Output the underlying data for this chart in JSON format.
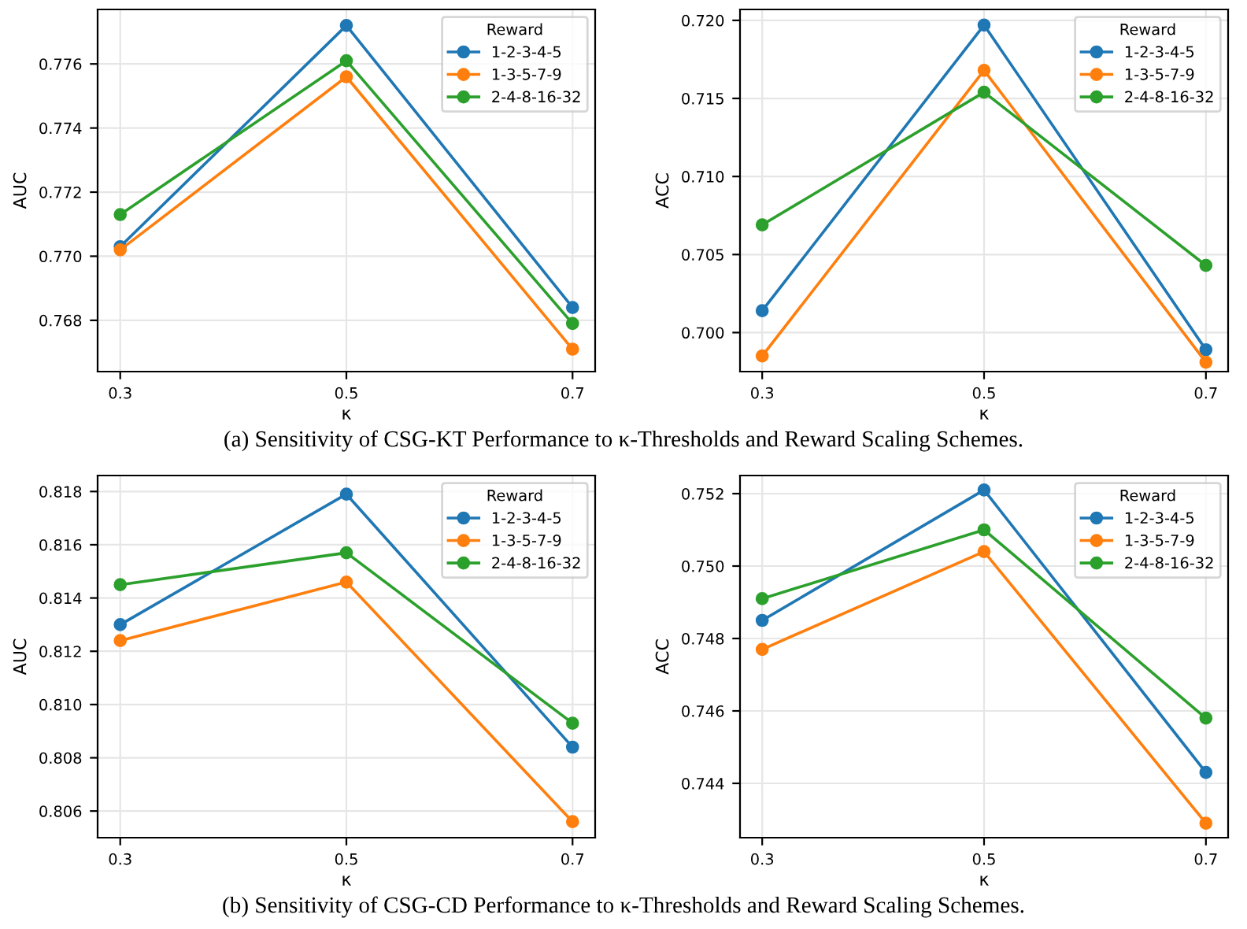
{
  "chart_data": [
    {
      "type": "line",
      "xlabel": "κ",
      "ylabel": "AUC",
      "legend_title": "Reward",
      "legend": "top right",
      "grid": true,
      "marker": "circle",
      "line_style": "solid",
      "x": [
        0.3,
        0.5,
        0.7
      ],
      "xlim": [
        0.28,
        0.72
      ],
      "xticks": [
        0.3,
        0.5,
        0.7
      ],
      "ylim": [
        0.7664,
        0.7777
      ],
      "yticks": [
        0.768,
        {
          "value": 0.77,
          "label": "0.770"
        },
        0.772,
        0.774,
        0.776
      ],
      "annotations": [
        "(a) Sensitivity of CSG-KT Performance to κ-Thresholds and Reward Scaling Schemes."
      ],
      "series": [
        {
          "name": "1-2-3-4-5",
          "color": "#1f77b4",
          "values": [
            0.7703,
            0.7772,
            0.7684
          ]
        },
        {
          "name": "1-3-5-7-9",
          "color": "#ff7f0e",
          "values": [
            0.7702,
            0.7756,
            0.7671
          ]
        },
        {
          "name": "2-4-8-16-32",
          "color": "#2ca02c",
          "values": [
            0.7713,
            0.7761,
            0.7679
          ]
        }
      ]
    },
    {
      "type": "line",
      "xlabel": "κ",
      "ylabel": "ACC",
      "legend_title": "Reward",
      "legend": "top right",
      "grid": true,
      "marker": "circle",
      "line_style": "solid",
      "x": [
        0.3,
        0.5,
        0.7
      ],
      "xlim": [
        0.28,
        0.72
      ],
      "xticks": [
        0.3,
        0.5,
        0.7
      ],
      "ylim": [
        0.6975,
        0.7207
      ],
      "yticks": [
        {
          "value": 0.7,
          "label": "0.700"
        },
        0.705,
        {
          "value": 0.71,
          "label": "0.710"
        },
        0.715,
        {
          "value": 0.72,
          "label": "0.720"
        }
      ],
      "series": [
        {
          "name": "1-2-3-4-5",
          "color": "#1f77b4",
          "values": [
            0.7014,
            0.7197,
            0.6989
          ]
        },
        {
          "name": "1-3-5-7-9",
          "color": "#ff7f0e",
          "values": [
            0.6985,
            0.7168,
            0.6981
          ]
        },
        {
          "name": "2-4-8-16-32",
          "color": "#2ca02c",
          "values": [
            0.7069,
            0.7154,
            0.7043
          ]
        }
      ]
    },
    {
      "type": "line",
      "xlabel": "κ",
      "ylabel": "AUC",
      "legend_title": "Reward",
      "legend": "top right",
      "grid": true,
      "marker": "circle",
      "line_style": "solid",
      "x": [
        0.3,
        0.5,
        0.7
      ],
      "xlim": [
        0.28,
        0.72
      ],
      "xticks": [
        0.3,
        0.5,
        0.7
      ],
      "ylim": [
        0.805,
        0.8186
      ],
      "yticks": [
        0.806,
        0.808,
        {
          "value": 0.81,
          "label": "0.810"
        },
        0.812,
        0.814,
        0.816,
        0.818
      ],
      "annotations": [
        "(b) Sensitivity of CSG-CD Performance to κ-Thresholds and Reward Scaling Schemes."
      ],
      "series": [
        {
          "name": "1-2-3-4-5",
          "color": "#1f77b4",
          "values": [
            0.813,
            0.8179,
            0.8084
          ]
        },
        {
          "name": "1-3-5-7-9",
          "color": "#ff7f0e",
          "values": [
            0.8124,
            0.8146,
            0.8056
          ]
        },
        {
          "name": "2-4-8-16-32",
          "color": "#2ca02c",
          "values": [
            0.8145,
            0.8157,
            0.8093
          ]
        }
      ]
    },
    {
      "type": "line",
      "xlabel": "κ",
      "ylabel": "ACC",
      "legend_title": "Reward",
      "legend": "top right",
      "grid": true,
      "marker": "circle",
      "line_style": "solid",
      "x": [
        0.3,
        0.5,
        0.7
      ],
      "xlim": [
        0.28,
        0.72
      ],
      "xticks": [
        0.3,
        0.5,
        0.7
      ],
      "ylim": [
        0.7425,
        0.7525
      ],
      "yticks": [
        0.744,
        0.746,
        0.748,
        {
          "value": 0.75,
          "label": "0.750"
        },
        0.752
      ],
      "series": [
        {
          "name": "1-2-3-4-5",
          "color": "#1f77b4",
          "values": [
            0.7485,
            0.7521,
            0.7443
          ]
        },
        {
          "name": "1-3-5-7-9",
          "color": "#ff7f0e",
          "values": [
            0.7477,
            0.7504,
            0.7429
          ]
        },
        {
          "name": "2-4-8-16-32",
          "color": "#2ca02c",
          "values": [
            0.7491,
            0.751,
            0.7458
          ]
        }
      ]
    }
  ]
}
